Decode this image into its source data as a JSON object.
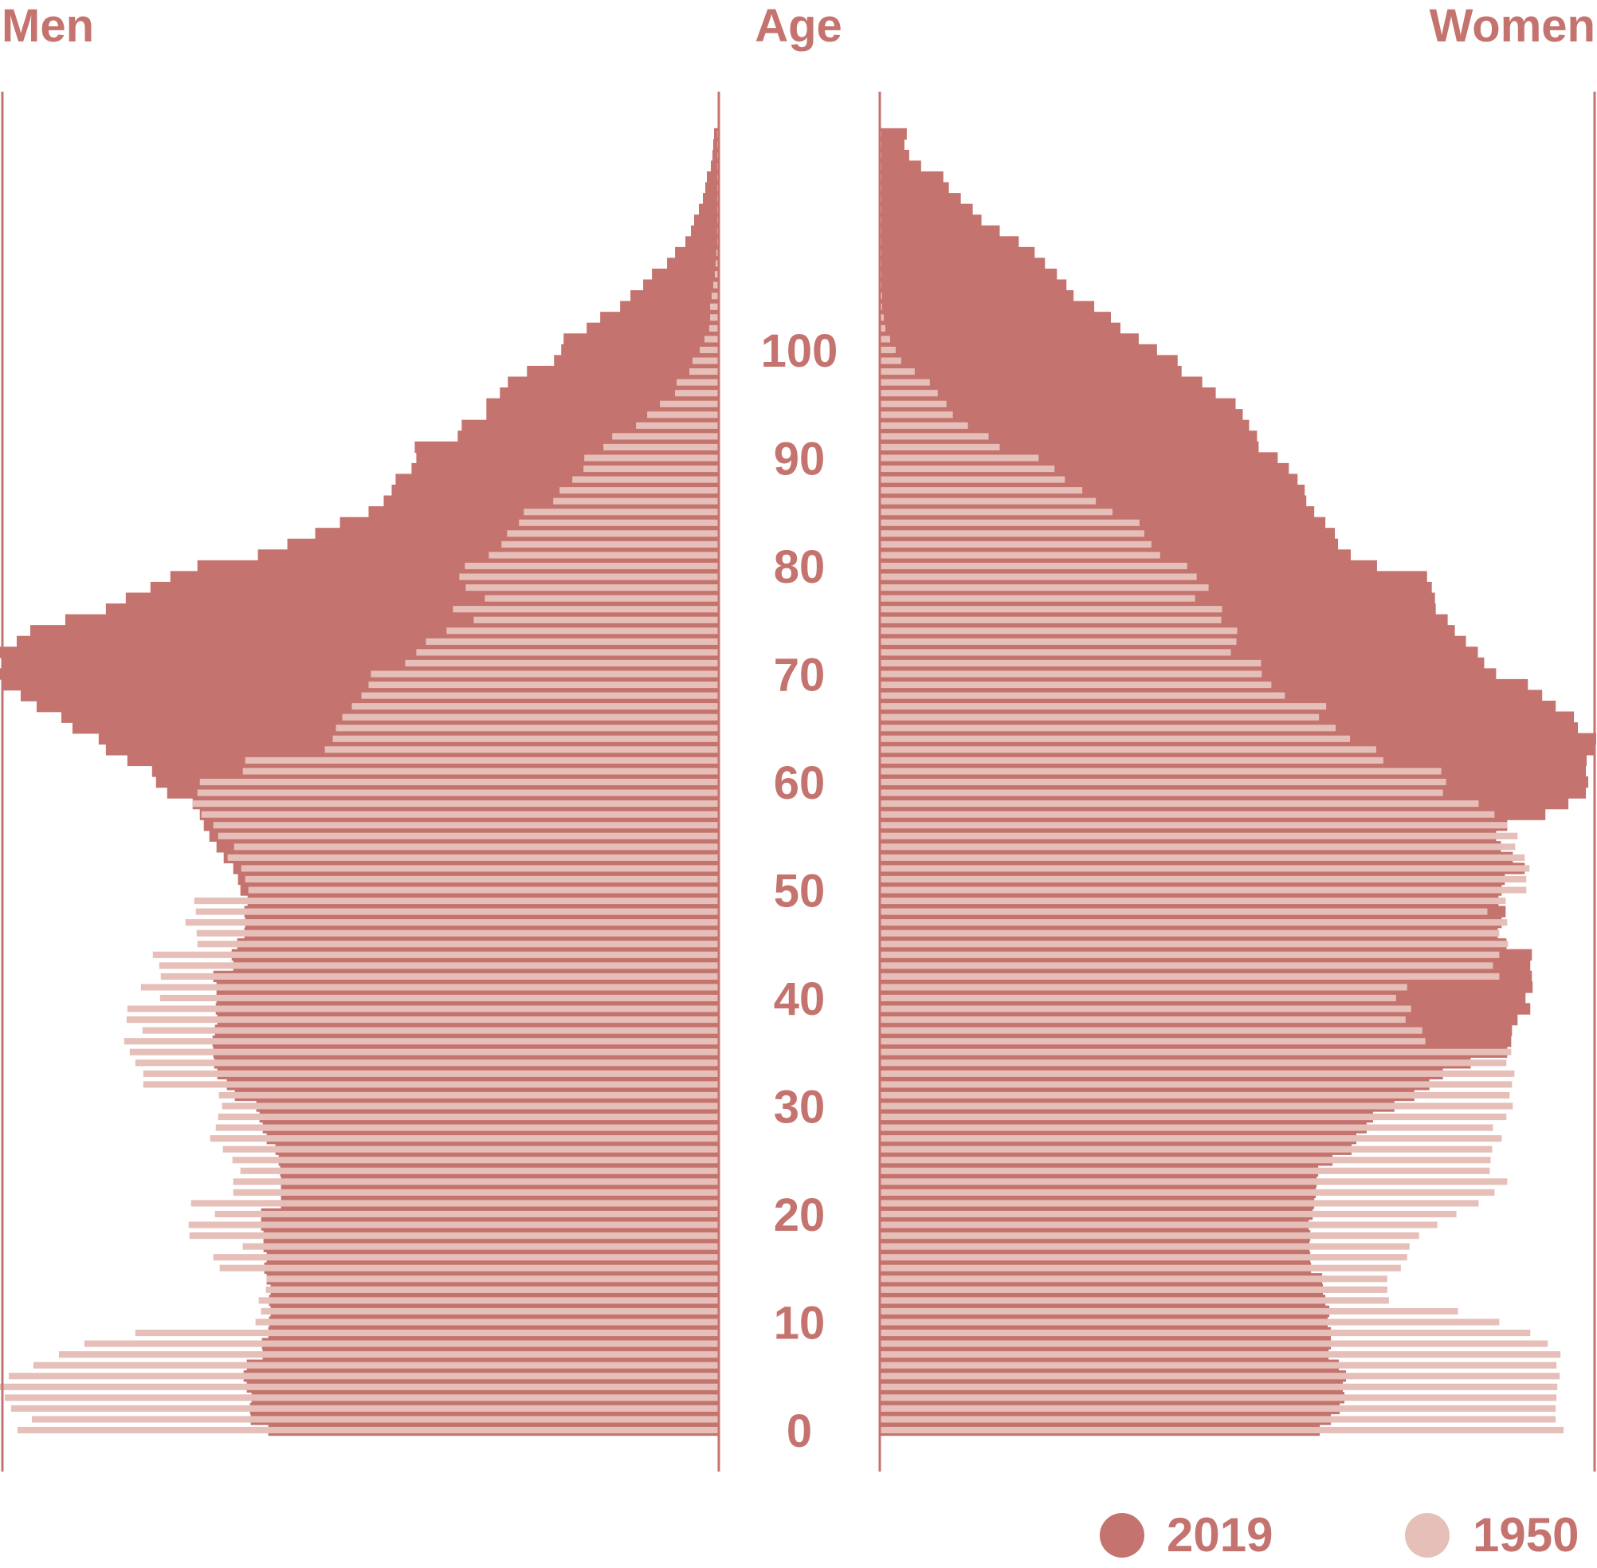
{
  "chart_data": {
    "type": "bar",
    "subtype": "population-pyramid",
    "labels": {
      "left": "Men",
      "center": "Age",
      "right": "Women"
    },
    "age_ticks": [
      "0",
      "10",
      "20",
      "30",
      "40",
      "50",
      "60",
      "70",
      "80",
      "90",
      "100"
    ],
    "value_range": [
      0,
      900
    ],
    "colors": {
      "2019": "#c4736e",
      "1950": "#e6bfb9",
      "axis": "#c4736e",
      "text": "#c4736e"
    },
    "legend": {
      "placement": "bottom-right",
      "items": [
        {
          "label": "2019",
          "key": "2019"
        },
        {
          "label": "1950",
          "key": "1950"
        }
      ]
    },
    "series": [
      {
        "name": "2019",
        "key": "2019",
        "sex": "men",
        "values": [
          565,
          587,
          588,
          586,
          592,
          596,
          592,
          572,
          573,
          565,
          564,
          562,
          564,
          562,
          567,
          570,
          567,
          571,
          571,
          574,
          574,
          549,
          549,
          549,
          550,
          552,
          556,
          567,
          572,
          576,
          580,
          607,
          617,
          629,
          633,
          634,
          635,
          632,
          629,
          631,
          630,
          630,
          634,
          609,
          611,
          604,
          595,
          594,
          595,
          591,
          600,
          603,
          609,
          621,
          630,
          639,
          646,
          651,
          660,
          692,
          706,
          711,
          742,
          769,
          778,
          811,
          825,
          856,
          876,
          898,
          904,
          899,
          903,
          881,
          864,
          820,
          769,
          744,
          713,
          688,
          654,
          578,
          541,
          506,
          475,
          439,
          420,
          410,
          405,
          385,
          379,
          381,
          327,
          322,
          291,
          291,
          274,
          264,
          240,
          206,
          197,
          194,
          165,
          148,
          123,
          110,
          94,
          83,
          64,
          54,
          41,
          34,
          30,
          24,
          19,
          16,
          14,
          9,
          7,
          6,
          5
        ]
      },
      {
        "name": "1950",
        "key": "1950",
        "sex": "men",
        "values": [
          880,
          862,
          888,
          896,
          902,
          891,
          860,
          828,
          796,
          732,
          581,
          574,
          577,
          568,
          567,
          626,
          634,
          597,
          664,
          665,
          632,
          662,
          609,
          609,
          600,
          610,
          622,
          638,
          631,
          628,
          623,
          627,
          722,
          722,
          732,
          739,
          746,
          723,
          743,
          742,
          701,
          725,
          700,
          702,
          710,
          654,
          655,
          669,
          656,
          658,
          590,
          594,
          599,
          616,
          608,
          628,
          634,
          649,
          660,
          654,
          651,
          597,
          594,
          494,
          484,
          480,
          472,
          460,
          448,
          439,
          436,
          393,
          379,
          367,
          341,
          307,
          333,
          293,
          317,
          325,
          318,
          288,
          272,
          265,
          250,
          244,
          207,
          199,
          183,
          169,
          168,
          144,
          133,
          103,
          89,
          73,
          54,
          52,
          36,
          32,
          23,
          17,
          11,
          10,
          10,
          8,
          6,
          4,
          3,
          2,
          1,
          1,
          1,
          1,
          1,
          1,
          1,
          1,
          1,
          1,
          1
        ]
      },
      {
        "name": "2019",
        "key": "2019",
        "sex": "women",
        "values": [
          553,
          567,
          578,
          584,
          582,
          586,
          577,
          564,
          567,
          567,
          563,
          565,
          560,
          557,
          556,
          542,
          541,
          540,
          541,
          539,
          544,
          546,
          548,
          549,
          551,
          569,
          593,
          599,
          612,
          620,
          647,
          672,
          691,
          708,
          743,
          789,
          794,
          795,
          802,
          818,
          812,
          821,
          820,
          818,
          820,
          788,
          777,
          782,
          787,
          778,
          782,
          786,
          811,
          796,
          781,
          775,
          789,
          837,
          866,
          888,
          891,
          888,
          889,
          900,
          901,
          878,
          873,
          850,
          833,
          815,
          775,
          760,
          752,
          737,
          723,
          714,
          699,
          698,
          694,
          688,
          625,
          592,
          576,
          572,
          560,
          546,
          536,
          534,
          525,
          514,
          500,
          476,
          474,
          464,
          456,
          447,
          422,
          405,
          379,
          374,
          348,
          325,
          302,
          290,
          269,
          243,
          234,
          222,
          207,
          194,
          174,
          150,
          127,
          116,
          101,
          86,
          79,
          51,
          36,
          30,
          33
        ]
      },
      {
        "name": "1950",
        "key": "1950",
        "sex": "women",
        "values": [
          860,
          850,
          850,
          851,
          852,
          855,
          851,
          856,
          840,
          818,
          779,
          727,
          640,
          638,
          638,
          655,
          663,
          666,
          678,
          701,
          725,
          753,
          773,
          789,
          767,
          768,
          770,
          782,
          771,
          788,
          796,
          792,
          795,
          798,
          788,
          794,
          686,
          682,
          661,
          668,
          649,
          663,
          779,
          771,
          779,
          790,
          779,
          789,
          764,
          787,
          813,
          813,
          817,
          811,
          799,
          802,
          789,
          773,
          753,
          708,
          712,
          706,
          633,
          624,
          591,
          573,
          552,
          561,
          509,
          492,
          480,
          479,
          441,
          448,
          449,
          429,
          430,
          396,
          413,
          398,
          386,
          352,
          341,
          332,
          326,
          292,
          271,
          254,
          232,
          219,
          199,
          150,
          136,
          110,
          91,
          83,
          72,
          62,
          43,
          26,
          19,
          12,
          6,
          4,
          2,
          2,
          1,
          1,
          1,
          1,
          1,
          1,
          1,
          1,
          1,
          1,
          1,
          1,
          1,
          1,
          1
        ]
      }
    ]
  }
}
